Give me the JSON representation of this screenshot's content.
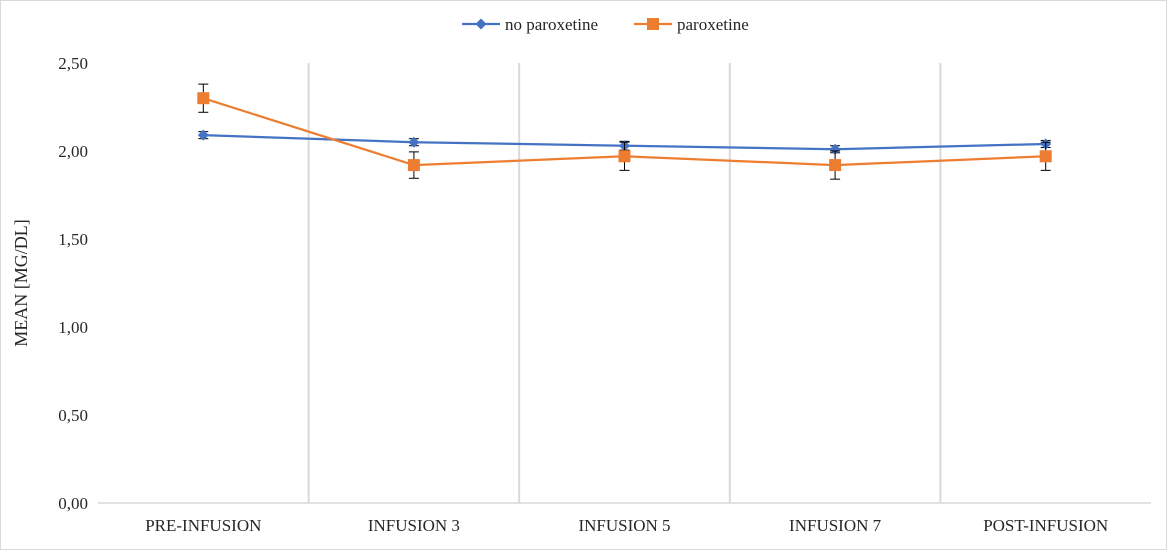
{
  "chart_data": {
    "type": "line",
    "title": "",
    "xlabel": "",
    "ylabel": "MEAN [MG/DL]",
    "categories": [
      "PRE-INFUSION",
      "INFUSION 3",
      "INFUSION 5",
      "INFUSION 7",
      "POST-INFUSION"
    ],
    "ylim": [
      0,
      2.5
    ],
    "y_ticks": [
      0,
      0.5,
      1,
      1.5,
      2,
      2.5
    ],
    "y_tick_labels": [
      "0,00",
      "0,50",
      "1,00",
      "1,50",
      "2,00",
      "2,50"
    ],
    "grid": "vertical category separators",
    "legend_position": "top",
    "series": [
      {
        "name": "no paroxetine",
        "color": "#4472C4",
        "marker": "diamond",
        "values": [
          2.09,
          2.05,
          2.03,
          2.01,
          2.04
        ],
        "error": [
          0.02,
          0.02,
          0.025,
          0.02,
          0.02
        ]
      },
      {
        "name": "paroxetine",
        "color": "#ED7D31",
        "marker": "square",
        "values": [
          2.3,
          1.92,
          1.97,
          1.92,
          1.97
        ],
        "error": [
          0.08,
          0.075,
          0.08,
          0.08,
          0.08
        ]
      }
    ]
  }
}
